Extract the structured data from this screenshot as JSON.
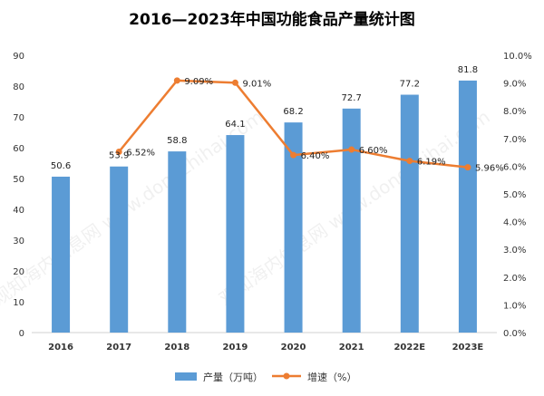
{
  "chart_data": {
    "type": "bar",
    "title": "2016—2023年中国功能食品产量统计图",
    "categories": [
      "2016",
      "2017",
      "2018",
      "2019",
      "2020",
      "2021",
      "2022E",
      "2023E"
    ],
    "series": [
      {
        "name": "产量（万吨）",
        "type": "bar",
        "axis": "left",
        "color": "#5b9bd5",
        "values": [
          50.6,
          53.9,
          58.8,
          64.1,
          68.2,
          72.7,
          77.2,
          81.8
        ],
        "labels": [
          "50.6",
          "53.9",
          "58.8",
          "64.1",
          "68.2",
          "72.7",
          "77.2",
          "81.8"
        ]
      },
      {
        "name": "增速（%）",
        "type": "line",
        "axis": "right",
        "color": "#ed7d31",
        "values": [
          null,
          6.52,
          9.09,
          9.01,
          6.4,
          6.6,
          6.19,
          5.96
        ],
        "labels": [
          "",
          "6.52%",
          "9.09%",
          "9.01%",
          "6.40%",
          "6.60%",
          "6.19%",
          "5.96%"
        ]
      }
    ],
    "y_left": {
      "ylim": [
        0,
        90
      ],
      "ticks": [
        0,
        10,
        20,
        30,
        40,
        50,
        60,
        70,
        80,
        90
      ],
      "tick_labels": [
        "0",
        "10",
        "20",
        "30",
        "40",
        "50",
        "60",
        "70",
        "80",
        "90"
      ]
    },
    "y_right": {
      "ylim": [
        0,
        10
      ],
      "ticks": [
        0,
        1,
        2,
        3,
        4,
        5,
        6,
        7,
        8,
        9,
        10
      ],
      "tick_labels": [
        "0.0%",
        "1.0%",
        "2.0%",
        "3.0%",
        "4.0%",
        "5.0%",
        "6.0%",
        "7.0%",
        "8.0%",
        "9.0%",
        "10.0%"
      ]
    },
    "grid": false,
    "legend": {
      "position": "bottom",
      "items": [
        {
          "label": "产量（万吨）",
          "marker": "bar",
          "color": "#5b9bd5"
        },
        {
          "label": "增速（%）",
          "marker": "line",
          "color": "#ed7d31"
        }
      ]
    },
    "watermark": "观知海内信息网 www.dongzhihai.com"
  }
}
